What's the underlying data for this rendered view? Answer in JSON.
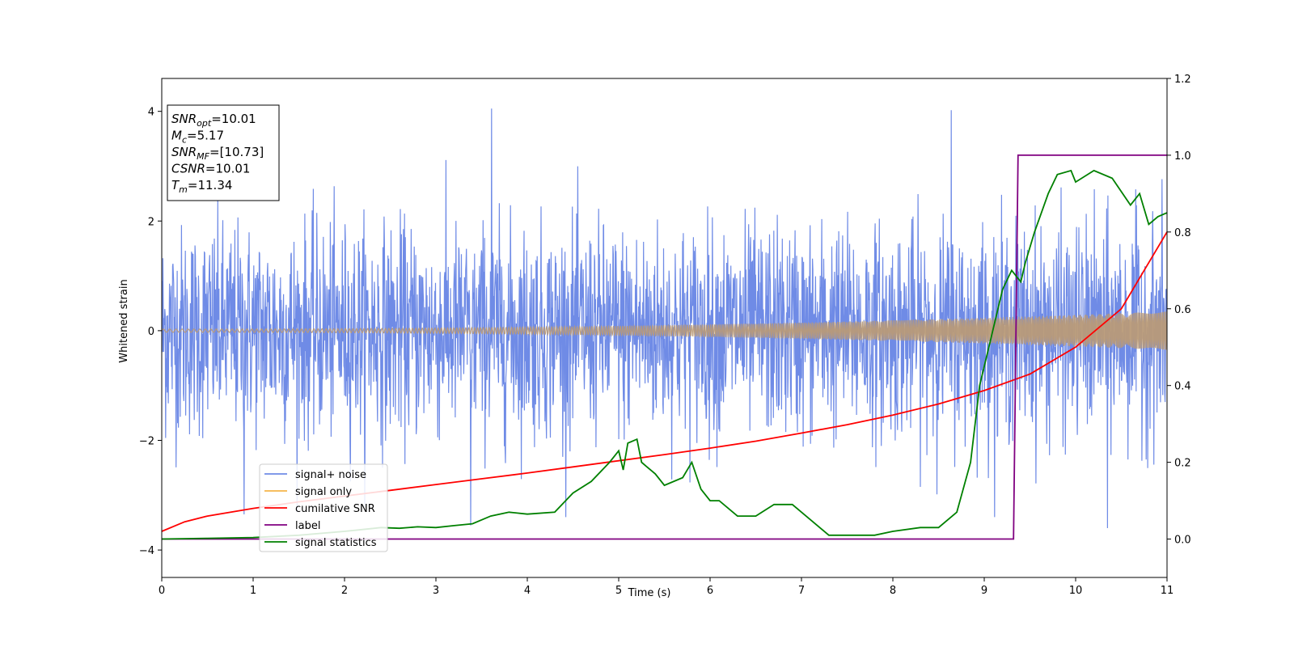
{
  "chart_data": {
    "type": "line",
    "xlabel": "Time (s)",
    "ylabel_left": "Whitened strain",
    "ylabel_right": "",
    "xlim": [
      0,
      11
    ],
    "ylim_left": [
      -4.5,
      4.6
    ],
    "ylim_right": [
      -0.1,
      1.2
    ],
    "x_ticks": [
      0,
      1,
      2,
      3,
      4,
      5,
      6,
      7,
      8,
      9,
      10,
      11
    ],
    "y_ticks_left": [
      -4,
      -2,
      0,
      2,
      4
    ],
    "y_ticks_right": [
      0.0,
      0.2,
      0.4,
      0.6,
      0.8,
      1.0,
      1.2
    ],
    "grid": false,
    "legend_position": "lower-left",
    "colors": {
      "signal_noise": "#6f8be6",
      "signal_only": "#f5b54a",
      "signal_only_overlap": "#b89a78",
      "cumulative_snr": "#ff0000",
      "label": "#800080",
      "signal_statistics": "#008000"
    },
    "series": [
      {
        "name": "signal+ noise",
        "axis": "left",
        "description_values": "dense noise",
        "typical_envelope": [
          -1.5,
          1.5
        ],
        "peak_spikes": [
          {
            "x": 3.61,
            "y": 4.05
          },
          {
            "x": 8.64,
            "y": 4.02
          },
          {
            "x": 10.35,
            "y": -3.6
          },
          {
            "x": 3.38,
            "y": -3.55
          },
          {
            "x": 0.9,
            "y": -3.35
          }
        ]
      },
      {
        "name": "signal only",
        "axis": "left",
        "amplitude_start": 0.03,
        "amplitude_end": 0.35
      },
      {
        "name": "cumilative SNR",
        "axis": "right",
        "x": [
          0,
          0.25,
          0.5,
          1,
          1.5,
          2,
          2.5,
          3,
          3.5,
          4,
          4.5,
          5,
          5.5,
          6,
          6.5,
          7,
          7.5,
          8,
          8.5,
          9,
          9.5,
          10,
          10.5,
          11
        ],
        "y": [
          0.02,
          0.045,
          0.06,
          0.08,
          0.097,
          0.112,
          0.127,
          0.142,
          0.157,
          0.172,
          0.188,
          0.204,
          0.22,
          0.237,
          0.255,
          0.276,
          0.298,
          0.323,
          0.352,
          0.387,
          0.43,
          0.5,
          0.6,
          0.8
        ]
      },
      {
        "name": "label",
        "axis": "right",
        "x": [
          0,
          9.32,
          9.37,
          11
        ],
        "y": [
          0,
          0,
          1,
          1
        ]
      },
      {
        "name": "signal statistics",
        "axis": "right",
        "x": [
          0,
          0.5,
          1,
          1.5,
          2,
          2.2,
          2.4,
          2.6,
          2.8,
          3,
          3.2,
          3.4,
          3.6,
          3.8,
          4.0,
          4.3,
          4.5,
          4.7,
          4.9,
          5.0,
          5.05,
          5.1,
          5.2,
          5.25,
          5.3,
          5.4,
          5.5,
          5.7,
          5.8,
          5.9,
          6.0,
          6.1,
          6.3,
          6.5,
          6.7,
          6.9,
          7.1,
          7.3,
          7.5,
          7.8,
          8.0,
          8.3,
          8.5,
          8.7,
          8.85,
          8.95,
          9.05,
          9.2,
          9.3,
          9.4,
          9.45,
          9.55,
          9.7,
          9.8,
          9.95,
          10.0,
          10.2,
          10.4,
          10.6,
          10.7,
          10.8,
          10.9,
          11.0
        ],
        "y": [
          0.0,
          0.002,
          0.004,
          0.01,
          0.02,
          0.025,
          0.03,
          0.028,
          0.032,
          0.03,
          0.035,
          0.04,
          0.06,
          0.07,
          0.065,
          0.07,
          0.12,
          0.15,
          0.2,
          0.23,
          0.18,
          0.25,
          0.26,
          0.2,
          0.19,
          0.17,
          0.14,
          0.16,
          0.2,
          0.13,
          0.1,
          0.1,
          0.06,
          0.06,
          0.09,
          0.09,
          0.05,
          0.01,
          0.01,
          0.01,
          0.02,
          0.03,
          0.03,
          0.07,
          0.2,
          0.4,
          0.5,
          0.65,
          0.7,
          0.67,
          0.72,
          0.8,
          0.9,
          0.95,
          0.96,
          0.93,
          0.96,
          0.94,
          0.87,
          0.9,
          0.82,
          0.84,
          0.85
        ]
      }
    ],
    "info_box": {
      "lines": [
        {
          "base": "SNR",
          "sub": "opt",
          "value": "=10.01"
        },
        {
          "base": "M",
          "sub": "c",
          "value": "=5.17"
        },
        {
          "base": "SNR",
          "sub": "MF",
          "value": "=[10.73]"
        },
        {
          "base": "CSNR",
          "sub": "",
          "value": "=10.01"
        },
        {
          "base": "T",
          "sub": "m",
          "value": "=11.34"
        }
      ]
    }
  }
}
